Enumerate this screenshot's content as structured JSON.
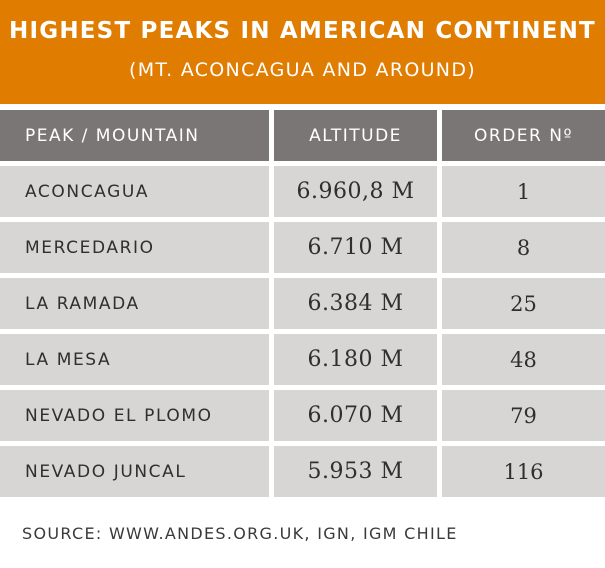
{
  "header": {
    "title": "HIGHEST PEAKS IN AMERICAN CONTINENT",
    "subtitle": "(MT. ACONCAGUA AND AROUND)"
  },
  "colors": {
    "header_bg": "#e07c00",
    "table_head_bg": "#7a7675",
    "table_row_bg": "#d8d6d5"
  },
  "table": {
    "columns": [
      "PEAK / MOUNTAIN",
      "ALTITUDE",
      "ORDER Nº"
    ],
    "rows": [
      {
        "peak": "ACONCAGUA",
        "altitude": "6.960,8 M",
        "order": "1"
      },
      {
        "peak": "MERCEDARIO",
        "altitude": "6.710 M",
        "order": "8"
      },
      {
        "peak": "LA RAMADA",
        "altitude": "6.384 M",
        "order": "25"
      },
      {
        "peak": "LA MESA",
        "altitude": "6.180 M",
        "order": "48"
      },
      {
        "peak": "NEVADO EL PLOMO",
        "altitude": "6.070 M",
        "order": "79"
      },
      {
        "peak": "NEVADO JUNCAL",
        "altitude": "5.953 M",
        "order": "116"
      }
    ]
  },
  "footer": {
    "source": "SOURCE: WWW.ANDES.ORG.UK, IGN, IGM CHILE"
  }
}
